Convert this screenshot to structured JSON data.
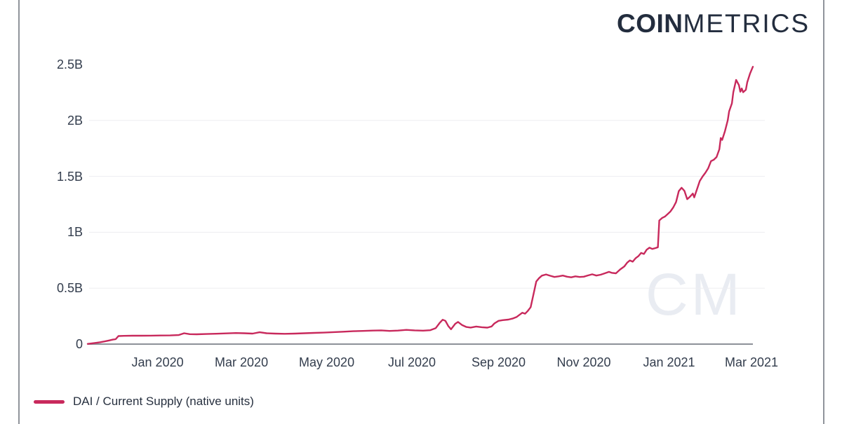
{
  "brand": {
    "logo_bold": "COIN",
    "logo_light": "METRICS"
  },
  "watermark": {
    "text": "CM"
  },
  "legend": {
    "items": [
      {
        "label": "DAI / Current Supply (native units)",
        "color": "#c8295c"
      }
    ]
  },
  "colors": {
    "line": "#c8295c",
    "axis_line": "#8d9198",
    "gridline": "#ededf1",
    "tick_text": "#333d4d",
    "legend_text": "#27303f",
    "logo_text": "#232d3e",
    "border": "#90949b",
    "watermark": "#e9ecf2"
  },
  "chart_data": {
    "type": "line",
    "title": "",
    "x_range": [
      "2019-11-12",
      "2021-03-02"
    ],
    "ylim": [
      0,
      2.5
    ],
    "y_unit": "billions of native units (B)",
    "grid": "horizontal",
    "legend_position": "bottom-left",
    "y_ticks": [
      {
        "value": 0,
        "label": "0",
        "gridline": false
      },
      {
        "value": 0.5,
        "label": "0.5B",
        "gridline": true
      },
      {
        "value": 1,
        "label": "1B",
        "gridline": true
      },
      {
        "value": 1.5,
        "label": "1.5B",
        "gridline": true
      },
      {
        "value": 2,
        "label": "2B",
        "gridline": true
      },
      {
        "value": 2.5,
        "label": "2.5B",
        "gridline": false
      }
    ],
    "x_ticks": [
      {
        "date": "2020-01-01",
        "label": "Jan 2020"
      },
      {
        "date": "2020-03-01",
        "label": "Mar 2020"
      },
      {
        "date": "2020-05-01",
        "label": "May 2020"
      },
      {
        "date": "2020-07-01",
        "label": "Jul 2020"
      },
      {
        "date": "2020-09-01",
        "label": "Sep 2020"
      },
      {
        "date": "2020-11-01",
        "label": "Nov 2020"
      },
      {
        "date": "2021-01-01",
        "label": "Jan 2021"
      },
      {
        "date": "2021-03-01",
        "label": "Mar 2021"
      }
    ],
    "series": [
      {
        "name": "DAI / Current Supply (native units)",
        "color": "#c8295c",
        "points": [
          [
            "2019-11-12",
            0.002
          ],
          [
            "2019-11-15",
            0.006
          ],
          [
            "2019-11-18",
            0.011
          ],
          [
            "2019-11-21",
            0.017
          ],
          [
            "2019-11-24",
            0.024
          ],
          [
            "2019-11-27",
            0.032
          ],
          [
            "2019-11-30",
            0.04
          ],
          [
            "2019-12-02",
            0.044
          ],
          [
            "2019-12-04",
            0.072
          ],
          [
            "2019-12-08",
            0.074
          ],
          [
            "2019-12-14",
            0.075
          ],
          [
            "2019-12-20",
            0.075
          ],
          [
            "2019-12-27",
            0.076
          ],
          [
            "2020-01-03",
            0.077
          ],
          [
            "2020-01-10",
            0.078
          ],
          [
            "2020-01-16",
            0.081
          ],
          [
            "2020-01-20",
            0.097
          ],
          [
            "2020-01-24",
            0.089
          ],
          [
            "2020-01-29",
            0.088
          ],
          [
            "2020-02-05",
            0.09
          ],
          [
            "2020-02-12",
            0.093
          ],
          [
            "2020-02-19",
            0.096
          ],
          [
            "2020-02-26",
            0.099
          ],
          [
            "2020-03-03",
            0.097
          ],
          [
            "2020-03-09",
            0.094
          ],
          [
            "2020-03-14",
            0.106
          ],
          [
            "2020-03-19",
            0.097
          ],
          [
            "2020-03-25",
            0.094
          ],
          [
            "2020-04-01",
            0.092
          ],
          [
            "2020-04-08",
            0.094
          ],
          [
            "2020-04-15",
            0.097
          ],
          [
            "2020-04-22",
            0.1
          ],
          [
            "2020-04-29",
            0.103
          ],
          [
            "2020-05-06",
            0.107
          ],
          [
            "2020-05-13",
            0.111
          ],
          [
            "2020-05-20",
            0.115
          ],
          [
            "2020-05-27",
            0.118
          ],
          [
            "2020-06-03",
            0.121
          ],
          [
            "2020-06-09",
            0.123
          ],
          [
            "2020-06-15",
            0.118
          ],
          [
            "2020-06-21",
            0.121
          ],
          [
            "2020-06-27",
            0.127
          ],
          [
            "2020-07-03",
            0.123
          ],
          [
            "2020-07-09",
            0.12
          ],
          [
            "2020-07-14",
            0.124
          ],
          [
            "2020-07-18",
            0.142
          ],
          [
            "2020-07-21",
            0.192
          ],
          [
            "2020-07-23",
            0.218
          ],
          [
            "2020-07-25",
            0.208
          ],
          [
            "2020-07-27",
            0.162
          ],
          [
            "2020-07-29",
            0.133
          ],
          [
            "2020-08-01",
            0.182
          ],
          [
            "2020-08-03",
            0.198
          ],
          [
            "2020-08-06",
            0.17
          ],
          [
            "2020-08-09",
            0.153
          ],
          [
            "2020-08-12",
            0.148
          ],
          [
            "2020-08-16",
            0.157
          ],
          [
            "2020-08-20",
            0.151
          ],
          [
            "2020-08-24",
            0.147
          ],
          [
            "2020-08-27",
            0.158
          ],
          [
            "2020-08-29",
            0.185
          ],
          [
            "2020-09-01",
            0.208
          ],
          [
            "2020-09-04",
            0.214
          ],
          [
            "2020-09-08",
            0.219
          ],
          [
            "2020-09-11",
            0.228
          ],
          [
            "2020-09-14",
            0.243
          ],
          [
            "2020-09-16",
            0.262
          ],
          [
            "2020-09-18",
            0.281
          ],
          [
            "2020-09-20",
            0.272
          ],
          [
            "2020-09-22",
            0.298
          ],
          [
            "2020-09-24",
            0.33
          ],
          [
            "2020-09-26",
            0.445
          ],
          [
            "2020-09-28",
            0.56
          ],
          [
            "2020-09-30",
            0.59
          ],
          [
            "2020-10-02",
            0.612
          ],
          [
            "2020-10-05",
            0.623
          ],
          [
            "2020-10-08",
            0.611
          ],
          [
            "2020-10-11",
            0.6
          ],
          [
            "2020-10-14",
            0.606
          ],
          [
            "2020-10-17",
            0.613
          ],
          [
            "2020-10-20",
            0.603
          ],
          [
            "2020-10-23",
            0.597
          ],
          [
            "2020-10-26",
            0.606
          ],
          [
            "2020-10-29",
            0.6
          ],
          [
            "2020-11-01",
            0.603
          ],
          [
            "2020-11-04",
            0.614
          ],
          [
            "2020-11-07",
            0.624
          ],
          [
            "2020-11-10",
            0.613
          ],
          [
            "2020-11-13",
            0.62
          ],
          [
            "2020-11-16",
            0.633
          ],
          [
            "2020-11-19",
            0.646
          ],
          [
            "2020-11-21",
            0.637
          ],
          [
            "2020-11-24",
            0.633
          ],
          [
            "2020-11-27",
            0.667
          ],
          [
            "2020-11-30",
            0.695
          ],
          [
            "2020-12-02",
            0.728
          ],
          [
            "2020-12-04",
            0.748
          ],
          [
            "2020-12-06",
            0.737
          ],
          [
            "2020-12-08",
            0.767
          ],
          [
            "2020-12-10",
            0.786
          ],
          [
            "2020-12-12",
            0.815
          ],
          [
            "2020-12-14",
            0.806
          ],
          [
            "2020-12-16",
            0.844
          ],
          [
            "2020-12-18",
            0.862
          ],
          [
            "2020-12-20",
            0.851
          ],
          [
            "2020-12-22",
            0.858
          ],
          [
            "2020-12-24",
            0.866
          ],
          [
            "2020-12-25",
            1.105
          ],
          [
            "2020-12-27",
            1.127
          ],
          [
            "2020-12-29",
            1.14
          ],
          [
            "2020-12-31",
            1.162
          ],
          [
            "2021-01-02",
            1.186
          ],
          [
            "2021-01-04",
            1.222
          ],
          [
            "2021-01-06",
            1.27
          ],
          [
            "2021-01-08",
            1.368
          ],
          [
            "2021-01-10",
            1.398
          ],
          [
            "2021-01-12",
            1.37
          ],
          [
            "2021-01-14",
            1.296
          ],
          [
            "2021-01-16",
            1.318
          ],
          [
            "2021-01-18",
            1.346
          ],
          [
            "2021-01-19",
            1.312
          ],
          [
            "2021-01-21",
            1.384
          ],
          [
            "2021-01-23",
            1.458
          ],
          [
            "2021-01-25",
            1.498
          ],
          [
            "2021-01-27",
            1.532
          ],
          [
            "2021-01-29",
            1.572
          ],
          [
            "2021-01-31",
            1.636
          ],
          [
            "2021-02-02",
            1.648
          ],
          [
            "2021-02-04",
            1.672
          ],
          [
            "2021-02-06",
            1.742
          ],
          [
            "2021-02-07",
            1.843
          ],
          [
            "2021-02-08",
            1.826
          ],
          [
            "2021-02-10",
            1.904
          ],
          [
            "2021-02-12",
            2.002
          ],
          [
            "2021-02-13",
            2.08
          ],
          [
            "2021-02-15",
            2.152
          ],
          [
            "2021-02-16",
            2.252
          ],
          [
            "2021-02-18",
            2.362
          ],
          [
            "2021-02-20",
            2.316
          ],
          [
            "2021-02-21",
            2.256
          ],
          [
            "2021-02-22",
            2.286
          ],
          [
            "2021-02-23",
            2.252
          ],
          [
            "2021-02-25",
            2.274
          ],
          [
            "2021-02-26",
            2.342
          ],
          [
            "2021-02-28",
            2.42
          ],
          [
            "2021-03-02",
            2.48
          ]
        ]
      }
    ]
  }
}
